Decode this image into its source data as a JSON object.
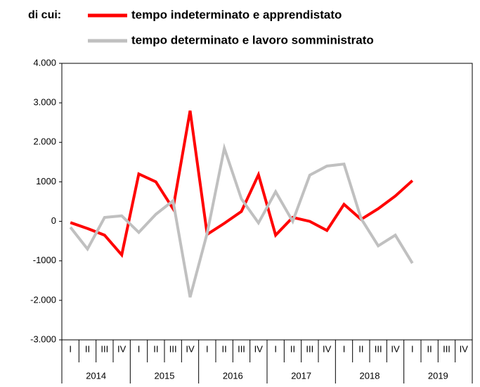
{
  "chart_data": {
    "type": "line",
    "legend_prefix": "di cui:",
    "categories": [
      "I",
      "II",
      "III",
      "IV",
      "I",
      "II",
      "III",
      "IV",
      "I",
      "II",
      "III",
      "IV",
      "I",
      "II",
      "III",
      "IV",
      "I",
      "II",
      "III",
      "IV",
      "I",
      "II",
      "III",
      "IV"
    ],
    "years": [
      "2014",
      "2015",
      "2016",
      "2017",
      "2018",
      "2019"
    ],
    "series": [
      {
        "name": "tempo indeterminato e apprendistato",
        "color": "#ff0000",
        "values": [
          -30,
          -180,
          -350,
          -850,
          1200,
          1000,
          320,
          2800,
          -330,
          -50,
          250,
          1180,
          -350,
          100,
          0,
          -230,
          430,
          50,
          320,
          640,
          1030,
          null,
          null,
          null
        ]
      },
      {
        "name": "tempo determinato e lavoro somministrato",
        "color": "#c0c0c0",
        "values": [
          -150,
          -700,
          100,
          140,
          -280,
          180,
          520,
          -1920,
          -300,
          1850,
          570,
          -40,
          750,
          0,
          1170,
          1400,
          1450,
          70,
          -620,
          -350,
          -1060,
          null,
          null,
          null
        ]
      }
    ],
    "ylim": [
      -3000,
      4000
    ],
    "yticks": [
      {
        "value": -3000,
        "label": "-3.000"
      },
      {
        "value": -2000,
        "label": "-2.000"
      },
      -1000,
      0,
      1000,
      {
        "value": 2000,
        "label": "2.000"
      },
      {
        "value": 3000,
        "label": "3.000"
      },
      {
        "value": 4000,
        "label": "4.000"
      }
    ],
    "grid": false
  }
}
